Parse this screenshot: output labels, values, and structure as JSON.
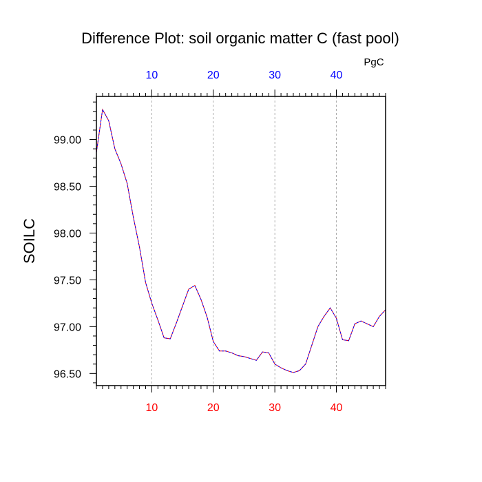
{
  "chart_data": {
    "type": "line",
    "title": "Difference Plot: soil organic matter C (fast pool)",
    "unit_label": "PgC",
    "ylabel": "SOILC",
    "xlim": [
      1,
      48
    ],
    "ylim": [
      96.37,
      99.46
    ],
    "x_ticks": [
      10,
      20,
      30,
      40
    ],
    "x_tick_labels": [
      "10",
      "20",
      "30",
      "40"
    ],
    "y_ticks": [
      96.5,
      97.0,
      97.5,
      98.0,
      98.5,
      99.0
    ],
    "y_tick_labels": [
      "96.50",
      "97.00",
      "97.50",
      "98.00",
      "98.50",
      "99.00"
    ],
    "x_minor_step": 1,
    "y_minor_step": 0.1,
    "top_tick_color": "#0000ff",
    "bottom_tick_color": "#ff0000",
    "grid": "x-dashed",
    "series": [
      {
        "color_a": "#ff0000",
        "color_b": "#0000ff",
        "x": [
          1,
          2,
          3,
          4,
          5,
          6,
          7,
          8,
          9,
          10,
          11,
          12,
          13,
          14,
          15,
          16,
          17,
          18,
          19,
          20,
          21,
          22,
          23,
          24,
          25,
          26,
          27,
          28,
          29,
          30,
          31,
          32,
          33,
          34,
          35,
          36,
          37,
          38,
          39,
          40,
          41,
          42,
          43,
          44,
          45,
          46,
          47,
          48
        ],
        "values": [
          98.86,
          99.32,
          99.2,
          98.9,
          98.74,
          98.53,
          98.17,
          97.85,
          97.47,
          97.25,
          97.07,
          96.88,
          96.87,
          97.04,
          97.22,
          97.4,
          97.44,
          97.29,
          97.1,
          96.84,
          96.74,
          96.74,
          96.72,
          96.69,
          96.68,
          96.66,
          96.64,
          96.73,
          96.72,
          96.6,
          96.56,
          96.53,
          96.51,
          96.53,
          96.6,
          96.8,
          97.0,
          97.11,
          97.2,
          97.09,
          96.86,
          96.85,
          97.03,
          97.06,
          97.03,
          97.0,
          97.11,
          97.18
        ]
      }
    ]
  }
}
